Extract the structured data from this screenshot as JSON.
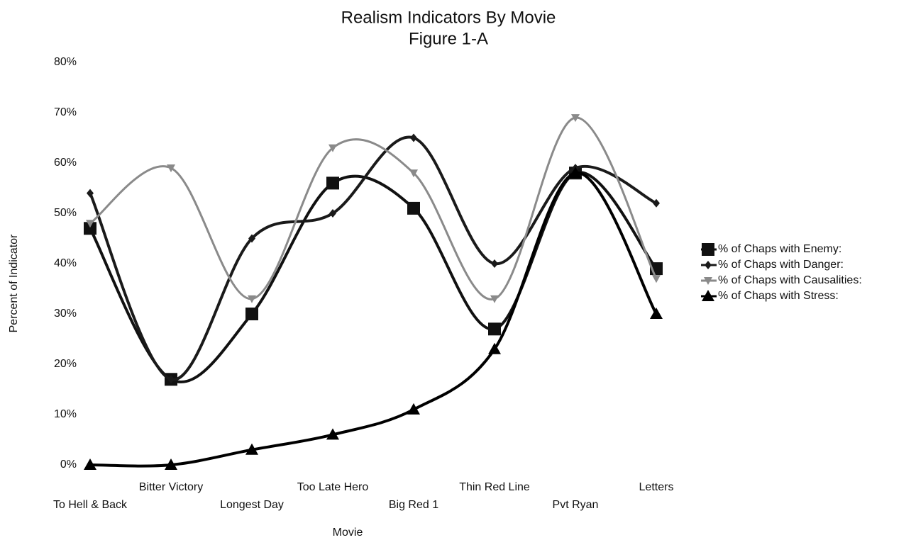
{
  "chart_data": {
    "type": "line",
    "title": "Realism Indicators By Movie",
    "subtitle": "Figure 1-A",
    "x_label": "Movie",
    "y_label": "Percent of Indicator",
    "categories": [
      "To Hell & Back",
      "Bitter Victory",
      "Longest Day",
      "Too Late Hero",
      "Big Red 1",
      "Thin Red Line",
      "Pvt Ryan",
      "Letters"
    ],
    "series": [
      {
        "name": "% of Chaps with Enemy:",
        "color": "#111111",
        "marker": "square",
        "values": [
          47,
          17,
          30,
          56,
          51,
          27,
          58,
          39
        ]
      },
      {
        "name": "% of Chaps with Danger:",
        "color": "#1a1a1a",
        "marker": "diamond",
        "values": [
          54,
          17,
          45,
          50,
          65,
          40,
          59,
          52
        ]
      },
      {
        "name": "% of Chaps with Causalities:",
        "color": "#8a8a8a",
        "marker": "triangle-down",
        "values": [
          48,
          59,
          33,
          63,
          58,
          33,
          69,
          37
        ]
      },
      {
        "name": "% of Chaps with Stress:",
        "color": "#000000",
        "marker": "triangle",
        "values": [
          0,
          0,
          3,
          6,
          11,
          23,
          58,
          30
        ]
      }
    ],
    "ylim": [
      0,
      80
    ],
    "yticks": [
      {
        "value": 0,
        "label": "0%"
      },
      {
        "value": 10,
        "label": "10%"
      },
      {
        "value": 20,
        "label": "20%"
      },
      {
        "value": 30,
        "label": "30%"
      },
      {
        "value": 40,
        "label": "40%"
      },
      {
        "value": 50,
        "label": "50%"
      },
      {
        "value": 60,
        "label": "60%"
      },
      {
        "value": 70,
        "label": "70%"
      },
      {
        "value": 80,
        "label": "80%"
      }
    ],
    "grid": false,
    "legend": "right"
  }
}
